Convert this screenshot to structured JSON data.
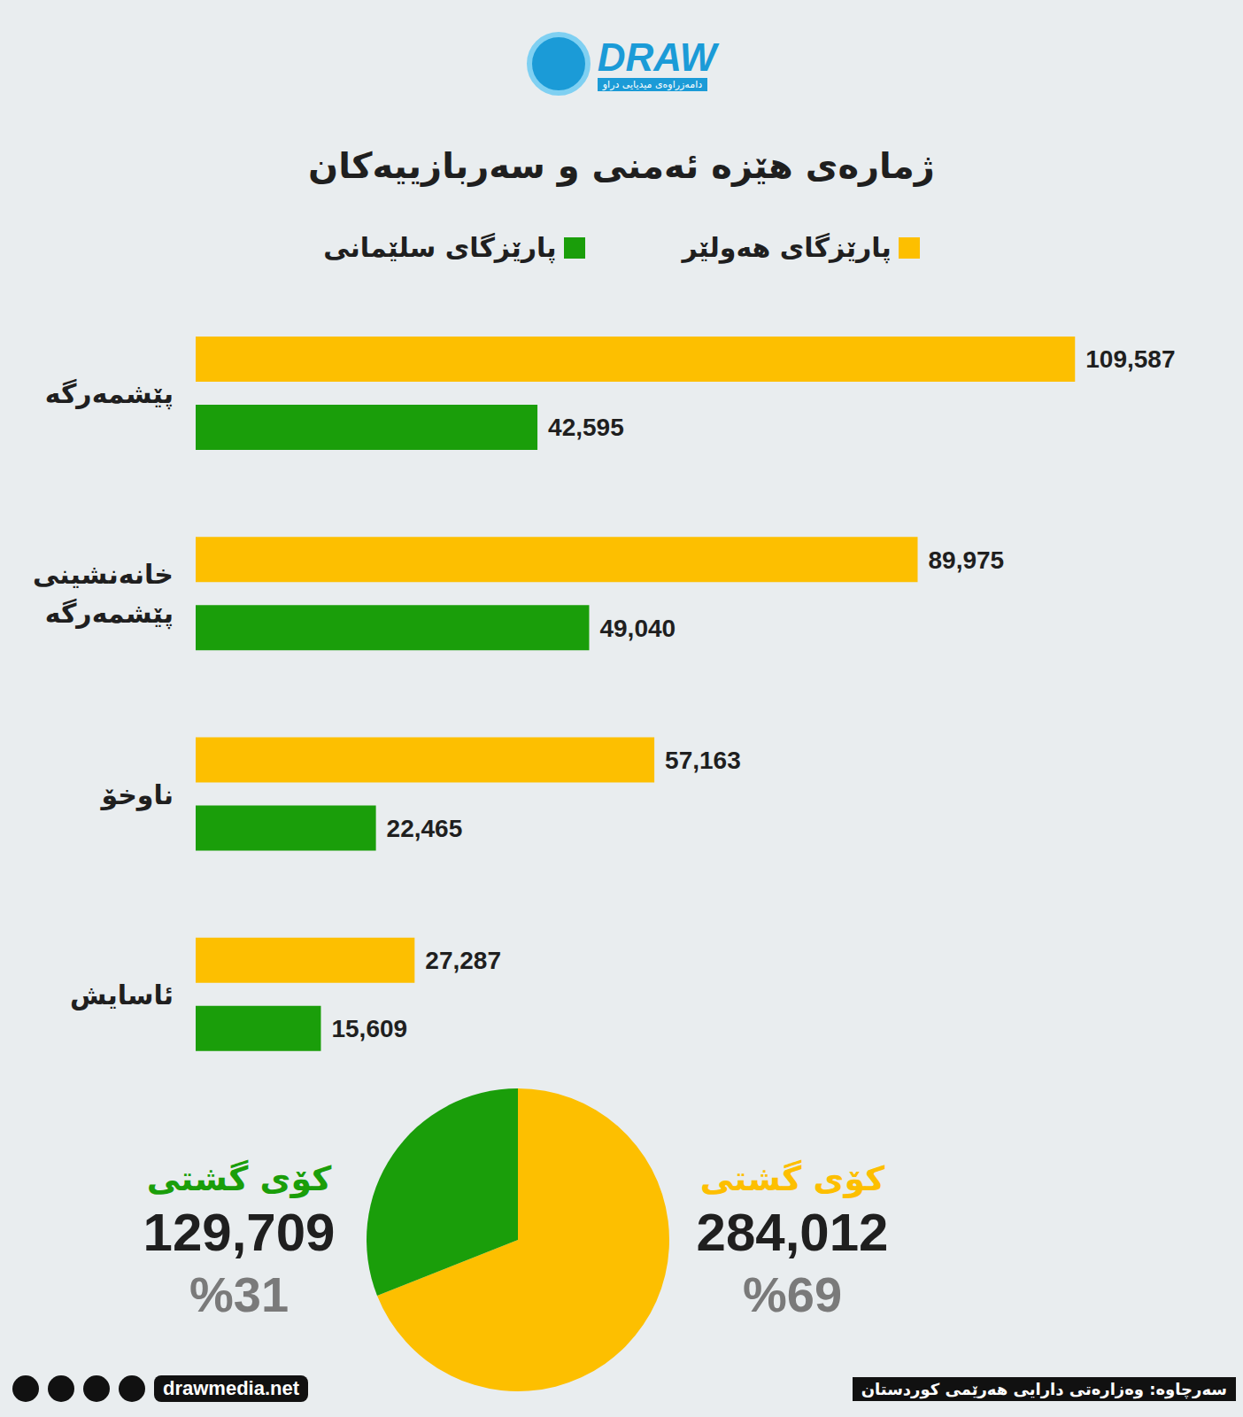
{
  "logo": "DRAW",
  "logo_subtitle": "دامەزراوەی میدیایی دراو",
  "chart_data": [
    {
      "type": "bar",
      "title": "ژمارەی هێزە ئەمنی و سەربازییەکان",
      "orientation": "horizontal",
      "categories": [
        "پێشمەرگە",
        "خانەنشینی پێشمەرگە",
        "ناوخۆ",
        "ئاسایش"
      ],
      "series": [
        {
          "name": "پارێزگای هەولێر",
          "color": "#fdbf00",
          "values": [
            109587,
            89975,
            57163,
            27287
          ],
          "value_labels": [
            "109,587",
            "89,975",
            "57,163",
            "27,287"
          ]
        },
        {
          "name": "پارێزگای سلێمانی",
          "color": "#1a9e0a",
          "values": [
            42595,
            49040,
            22465,
            15609
          ],
          "value_labels": [
            "42,595",
            "49,040",
            "22,465",
            "15,609"
          ]
        }
      ],
      "xlim": [
        0,
        110000
      ],
      "data_labels": true,
      "tick_labels": "y",
      "legend": "top",
      "grid": false
    },
    {
      "type": "pie",
      "categories": [
        "پارێزگای هەولێر",
        "پارێزگای سلێمانی"
      ],
      "values": [
        69,
        31
      ],
      "value_labels": [
        "%69",
        "%31"
      ],
      "colors": [
        "#fdbf00",
        "#1a9e0a"
      ],
      "totals": [
        284012,
        129709
      ],
      "total_labels": [
        "284,012",
        "129,709"
      ],
      "total_title": "کۆی گشتی",
      "data_labels": true
    }
  ],
  "footer": {
    "website": "drawmedia.net",
    "source": "سەرچاوە: وەزارەتی دارایی هەرێمی کوردستان"
  }
}
